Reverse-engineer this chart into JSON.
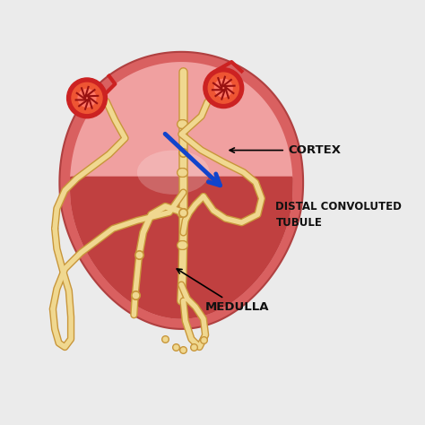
{
  "background_color": "#ebebeb",
  "kidney_outer_color": "#d96060",
  "cortex_color": "#f0a0a0",
  "medulla_color": "#c04040",
  "papilla_color": "#d4a060",
  "tubule_fill": "#f0d890",
  "tubule_edge": "#c8963a",
  "glom_color": "#cc2222",
  "glom_highlight": "#ee5533",
  "blue_arrow_color": "#1144cc",
  "label_color": "#111111",
  "label_cortex": "CORTEX",
  "label_medulla": "MEDULLA",
  "label_distal_1": "DISTAL CONVOLUTED",
  "label_distal_2": "TUBULE",
  "font_size": 9,
  "bg_stripe": "#e0e0e0"
}
